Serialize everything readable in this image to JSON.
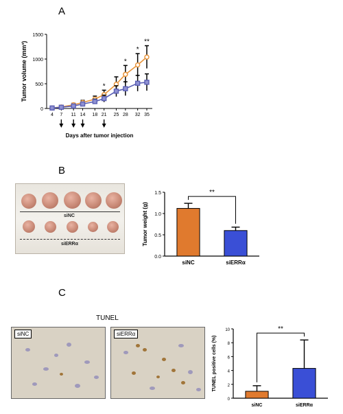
{
  "panels": {
    "a": "A",
    "b": "B",
    "c": "C"
  },
  "colors": {
    "siNC": "#e07a2e",
    "siERR": "#3a4fd6",
    "line_si": "#e8943a",
    "line_err": "#5a5fb4"
  },
  "tunel_title": "TUNEL",
  "photo_labels": {
    "sinc": "siNC",
    "sierr": "siERRα"
  },
  "micro_labels": {
    "left": "siNC",
    "right": "siERRα"
  },
  "chart_data": [
    {
      "type": "line",
      "x": [
        4,
        7,
        11,
        14,
        18,
        21,
        25,
        28,
        32,
        35
      ],
      "xlabel": "Days after tumor injection",
      "ylabel": "Tumor volume (mm³)",
      "ylim": [
        0,
        1500
      ],
      "yticks": [
        0,
        500,
        1000,
        1500
      ],
      "series": [
        {
          "values": [
            10,
            30,
            75,
            120,
            190,
            280,
            490,
            690,
            880,
            1040
          ],
          "errors": [
            10,
            15,
            30,
            45,
            60,
            90,
            150,
            180,
            230,
            230
          ]
        },
        {
          "values": [
            10,
            25,
            50,
            90,
            140,
            200,
            350,
            400,
            510,
            530
          ],
          "errors": [
            10,
            15,
            25,
            40,
            50,
            70,
            110,
            140,
            160,
            170
          ]
        }
      ],
      "significance": [
        {
          "x": 21,
          "label": "*"
        },
        {
          "x": 28,
          "label": "*"
        },
        {
          "x": 32,
          "label": "*"
        },
        {
          "x": 35,
          "label": "**"
        }
      ],
      "injection_days": [
        7,
        11,
        14,
        21
      ]
    },
    {
      "type": "bar",
      "categories": [
        "siNC",
        "siERRα"
      ],
      "values": [
        1.12,
        0.6
      ],
      "errors": [
        0.12,
        0.08
      ],
      "ylabel": "Tumor weight (g)",
      "ylim": [
        0,
        1.5
      ],
      "yticks": [
        "0.0",
        "0.5",
        "1.0",
        "1.5"
      ],
      "significance": "**"
    },
    {
      "type": "bar",
      "categories": [
        "siNC",
        "siERRα"
      ],
      "values": [
        1.0,
        4.3
      ],
      "errors": [
        0.8,
        4.1
      ],
      "ylabel": "TUNEL positive cells (%)",
      "ylim": [
        0,
        10
      ],
      "yticks": [
        "0",
        "2",
        "4",
        "6",
        "8",
        "10"
      ],
      "significance": "**"
    }
  ]
}
